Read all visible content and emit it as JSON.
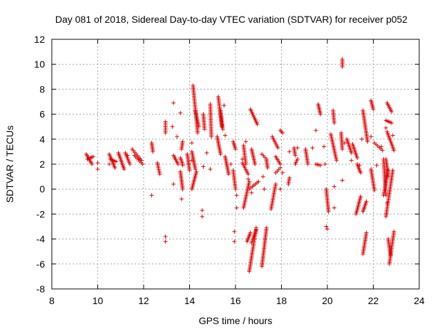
{
  "chart_data": {
    "type": "scatter",
    "title": "Day 081 of 2018, Sidereal Day-to-day VTEC variation (SDTVAR) for receiver p052",
    "xlabel": "GPS time / hours",
    "ylabel": "SDTVAR / TECUs",
    "xlim": [
      8,
      24
    ],
    "ylim": [
      -8,
      12
    ],
    "x_ticks": [
      "8",
      "10",
      "12",
      "14",
      "16",
      "18",
      "20",
      "22",
      "24"
    ],
    "y_ticks": [
      "-8",
      "-6",
      "-4",
      "-2",
      "0",
      "2",
      "4",
      "6",
      "8",
      "10",
      "12"
    ],
    "grid": true,
    "marker": "plus",
    "series_color": "#e00000",
    "segments": [
      [
        9.5,
        2.8,
        9.75,
        2.0
      ],
      [
        9.55,
        2.4,
        9.8,
        2.6
      ],
      [
        10.5,
        2.8,
        10.75,
        1.7
      ],
      [
        10.55,
        2.4,
        10.8,
        2.2
      ],
      [
        10.9,
        2.9,
        11.15,
        1.6
      ],
      [
        11.2,
        2.9,
        11.4,
        2.0
      ],
      [
        11.5,
        3.2,
        11.9,
        2.3
      ],
      [
        11.6,
        2.7,
        11.95,
        2.0
      ],
      [
        12.35,
        3.7,
        12.4,
        3.0
      ],
      [
        12.6,
        2.1,
        12.7,
        1.2
      ],
      [
        12.95,
        5.4,
        12.95,
        4.5
      ],
      [
        13.3,
        2.7,
        13.5,
        2.0
      ],
      [
        13.6,
        2.5,
        13.7,
        2.0
      ],
      [
        13.6,
        1.4,
        13.7,
        0.0
      ],
      [
        13.7,
        3.8,
        13.65,
        3.2
      ],
      [
        13.9,
        2.8,
        14.0,
        1.5
      ],
      [
        14.15,
        8.3,
        14.35,
        4.5
      ],
      [
        14.25,
        6.3,
        14.4,
        5.0
      ],
      [
        14.1,
        3.0,
        14.25,
        1.6
      ],
      [
        14.1,
        0.0,
        14.3,
        1.4
      ],
      [
        14.6,
        6.0,
        14.65,
        4.8
      ],
      [
        14.9,
        6.8,
        14.95,
        4.2
      ],
      [
        15.25,
        7.4,
        15.4,
        5.0
      ],
      [
        15.2,
        4.2,
        15.35,
        2.8
      ],
      [
        15.35,
        6.3,
        15.45,
        4.8
      ],
      [
        15.55,
        2.6,
        15.7,
        1.2
      ],
      [
        15.9,
        3.8,
        16.0,
        3.2
      ],
      [
        15.9,
        1.5,
        16.0,
        0.0
      ],
      [
        16.3,
        2.1,
        16.55,
        1.2
      ],
      [
        16.35,
        3.5,
        16.45,
        2.0
      ],
      [
        16.35,
        -1.5,
        16.6,
        0.6
      ],
      [
        16.6,
        0.0,
        17.0,
        0.6
      ],
      [
        16.65,
        6.4,
        16.95,
        5.2
      ],
      [
        16.7,
        3.2,
        16.85,
        2.0
      ],
      [
        16.6,
        -6.6,
        16.9,
        -3.1
      ],
      [
        16.7,
        -4.3,
        16.9,
        -3.3
      ],
      [
        16.5,
        -4.2,
        16.65,
        -3.5
      ],
      [
        17.15,
        -6.2,
        17.35,
        -3.1
      ],
      [
        17.15,
        2.8,
        17.35,
        2.4
      ],
      [
        17.35,
        2.3,
        17.4,
        1.7
      ],
      [
        17.6,
        4.2,
        17.85,
        3.3
      ],
      [
        17.75,
        2.6,
        17.95,
        2.0
      ],
      [
        17.55,
        -1.6,
        17.75,
        0.4
      ],
      [
        17.75,
        1.3,
        17.95,
        1.7
      ],
      [
        17.95,
        4.7,
        18.05,
        4.5
      ],
      [
        18.3,
        0.4,
        18.35,
        0.9
      ],
      [
        18.55,
        3.3,
        18.6,
        2.7
      ],
      [
        18.6,
        2.0,
        18.7,
        2.4
      ],
      [
        19.05,
        3.2,
        19.15,
        2.0
      ],
      [
        19.5,
        2.0,
        19.7,
        1.9
      ],
      [
        19.6,
        6.8,
        19.7,
        6.0
      ],
      [
        19.95,
        0.0,
        20.05,
        -1.8
      ],
      [
        20.15,
        4.4,
        20.4,
        2.3
      ],
      [
        20.25,
        6.3,
        20.3,
        5.3
      ],
      [
        20.6,
        4.5,
        20.65,
        3.2
      ],
      [
        20.65,
        10.4,
        20.65,
        9.8
      ],
      [
        20.85,
        4.0,
        21.05,
        2.9
      ],
      [
        21.1,
        3.6,
        21.3,
        2.5
      ],
      [
        21.3,
        2.0,
        21.45,
        1.3
      ],
      [
        21.25,
        -2.0,
        21.45,
        -0.6
      ],
      [
        21.55,
        6.3,
        21.75,
        3.8
      ],
      [
        21.55,
        -5.2,
        21.7,
        -3.5
      ],
      [
        21.55,
        -1.8,
        21.7,
        -1.0
      ],
      [
        21.9,
        7.1,
        22.0,
        6.4
      ],
      [
        22.05,
        3.7,
        22.4,
        3.1
      ],
      [
        21.9,
        1.6,
        22.05,
        -0.1
      ],
      [
        22.45,
        2.4,
        22.55,
        -0.5
      ],
      [
        22.45,
        -0.5,
        22.65,
        1.5
      ],
      [
        22.6,
        6.9,
        22.8,
        6.2
      ],
      [
        22.55,
        5.5,
        22.8,
        5.3
      ],
      [
        22.55,
        2.4,
        22.65,
        1.0
      ],
      [
        22.6,
        4.6,
        22.9,
        3.1
      ],
      [
        22.55,
        -2.2,
        22.85,
        1.5
      ],
      [
        22.7,
        -6.0,
        22.9,
        -3.4
      ],
      [
        22.65,
        -4.0,
        22.75,
        -5.3
      ]
    ],
    "isolated_points": [
      [
        10.0,
        2.1
      ],
      [
        10.0,
        1.6
      ],
      [
        10.5,
        2.0
      ],
      [
        11.3,
        2.7
      ],
      [
        11.85,
        2.4
      ],
      [
        12.35,
        -0.5
      ],
      [
        12.95,
        -3.8
      ],
      [
        12.95,
        -4.2
      ],
      [
        13.25,
        5.0
      ],
      [
        13.3,
        6.9
      ],
      [
        13.3,
        0.4
      ],
      [
        13.45,
        4.2
      ],
      [
        13.6,
        6.1
      ],
      [
        13.65,
        -0.8
      ],
      [
        13.7,
        1.9
      ],
      [
        14.1,
        3.7
      ],
      [
        14.1,
        2.3
      ],
      [
        14.55,
        -2.2
      ],
      [
        14.55,
        -1.7
      ],
      [
        14.6,
        1.8
      ],
      [
        14.75,
        2.9
      ],
      [
        14.9,
        1.6
      ],
      [
        15.5,
        6.7
      ],
      [
        15.55,
        4.3
      ],
      [
        15.8,
        2.0
      ],
      [
        15.95,
        -3.4
      ],
      [
        15.95,
        -4.2
      ],
      [
        16.05,
        -0.5
      ],
      [
        16.05,
        -1.5
      ],
      [
        16.3,
        2.4
      ],
      [
        16.45,
        3.8
      ],
      [
        16.55,
        0.8
      ],
      [
        16.7,
        -0.3
      ],
      [
        17.2,
        1.0
      ],
      [
        17.25,
        0.0
      ],
      [
        17.95,
        0.0
      ],
      [
        18.05,
        1.3
      ],
      [
        18.35,
        3.0
      ],
      [
        18.7,
        3.3
      ],
      [
        19.35,
        3.3
      ],
      [
        19.5,
        4.7
      ],
      [
        19.85,
        3.4
      ],
      [
        19.9,
        2.0
      ],
      [
        19.95,
        -3.0
      ],
      [
        20.0,
        -3.2
      ],
      [
        20.3,
        -1.5
      ],
      [
        20.3,
        0.2
      ],
      [
        20.65,
        0.7
      ],
      [
        20.75,
        3.7
      ],
      [
        21.05,
        2.3
      ],
      [
        21.4,
        1.9
      ],
      [
        21.5,
        4.0
      ],
      [
        21.9,
        4.2
      ],
      [
        22.15,
        1.9
      ],
      [
        22.35,
        3.4
      ],
      [
        22.85,
        4.3
      ],
      [
        22.6,
        -1.1
      ],
      [
        22.55,
        4.9
      ]
    ]
  }
}
